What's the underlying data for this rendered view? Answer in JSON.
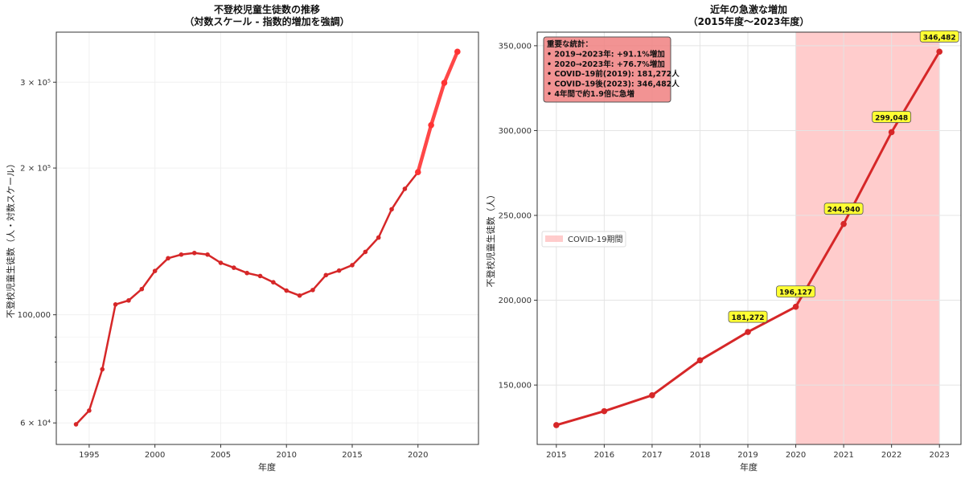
{
  "chart_data": [
    {
      "type": "line",
      "title": "不登校児童生徒数の推移",
      "subtitle": "（対数スケール - 指数的増加を強調）",
      "xlabel": "年度",
      "ylabel": "不登校児童生徒数（人・対数スケール）",
      "yscale": "log",
      "xlim": [
        1992.5,
        2024.6
      ],
      "ylim": [
        54200,
        380000
      ],
      "xticks": [
        1995,
        2000,
        2005,
        2010,
        2015,
        2020
      ],
      "yticks": [
        {
          "value": 60000,
          "label": "6 × 10⁴"
        },
        {
          "value": 100000,
          "label": "100,000"
        },
        {
          "value": 200000,
          "label": "2 × 10⁵"
        },
        {
          "value": 300000,
          "label": "3 × 10⁵"
        }
      ],
      "grid": true,
      "x": [
        1994,
        1995,
        1996,
        1997,
        1998,
        1999,
        2000,
        2001,
        2002,
        2003,
        2004,
        2005,
        2006,
        2007,
        2008,
        2009,
        2010,
        2011,
        2012,
        2013,
        2014,
        2015,
        2016,
        2017,
        2018,
        2019,
        2020,
        2021,
        2022,
        2023
      ],
      "values": [
        59600,
        63600,
        77300,
        105000,
        107000,
        112900,
        123000,
        130600,
        132900,
        133900,
        132900,
        127800,
        124900,
        121800,
        120100,
        116600,
        112100,
        109500,
        112400,
        120600,
        123200,
        126400,
        134600,
        144000,
        164600,
        181272,
        196127,
        244940,
        299048,
        346482
      ],
      "highlight_from": 2020,
      "colors": {
        "base": "#d62728",
        "highlight": "#ff3333"
      }
    },
    {
      "type": "line",
      "title": "近年の急激な増加",
      "subtitle": "（2015年度〜2023年度）",
      "xlabel": "年度",
      "ylabel": "不登校児童生徒数（人）",
      "xlim": [
        2014.6,
        2023.45
      ],
      "ylim": [
        115000,
        358000
      ],
      "xticks": [
        2015,
        2016,
        2017,
        2018,
        2019,
        2020,
        2021,
        2022,
        2023
      ],
      "yticks": [
        {
          "value": 150000,
          "label": "150,000"
        },
        {
          "value": 200000,
          "label": "200,000"
        },
        {
          "value": 250000,
          "label": "250,000"
        },
        {
          "value": 300000,
          "label": "300,000"
        },
        {
          "value": 350000,
          "label": "350,000"
        }
      ],
      "grid": true,
      "x": [
        2015,
        2016,
        2017,
        2018,
        2019,
        2020,
        2021,
        2022,
        2023
      ],
      "values": [
        126400,
        134600,
        144000,
        164600,
        181272,
        196127,
        244940,
        299048,
        346482
      ],
      "data_labels": [
        {
          "x": 2019,
          "label": "181,272"
        },
        {
          "x": 2020,
          "label": "196,127"
        },
        {
          "x": 2021,
          "label": "244,940"
        },
        {
          "x": 2022,
          "label": "299,048"
        },
        {
          "x": 2023,
          "label": "346,482"
        }
      ],
      "shaded_region": {
        "from": 2020,
        "to": 2023,
        "label": "COVID-19期間",
        "color": "#ff9999"
      },
      "legend": {
        "placement": "center-left",
        "entries": [
          "COVID-19期間"
        ]
      },
      "annotation": {
        "lines": [
          "重要な統計：",
          "• 2019→2023年: +91.1%増加",
          "• 2020→2023年: +76.7%増加",
          "• COVID-19前(2019): 181,272人",
          "• COVID-19後(2023): 346,482人",
          "• 4年間で約1.9倍に急増"
        ],
        "placement": "top-left"
      },
      "colors": {
        "line": "#d62728"
      }
    }
  ]
}
